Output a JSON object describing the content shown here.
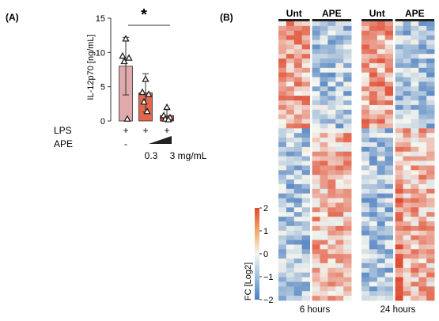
{
  "panels": {
    "a_label": "(A)",
    "b_label": "(B)"
  },
  "colors": {
    "bar_untreated": "#dfaaa9",
    "bar_low": "#e2674d",
    "bar_high": "#dd4a31",
    "heat_low": "#4a7dc0",
    "heat_mid": "#f4f6ef",
    "heat_high": "#e04a30",
    "axis": "#333333"
  },
  "chart_data": [
    {
      "type": "bar",
      "title": "",
      "xlabel": "",
      "ylabel": "IL-12p70 [ng/mL]",
      "ylim": [
        0,
        15
      ],
      "yticks": [
        0,
        5,
        10,
        15
      ],
      "categories": [
        "-",
        "0.3",
        "3 mg/mL"
      ],
      "values": [
        8.0,
        4.1,
        0.8
      ],
      "errors": [
        4.2,
        2.8,
        1.0
      ],
      "points": [
        [
          12.0,
          9.5,
          9.2,
          8.7,
          0.3
        ],
        [
          6.1,
          4.2,
          3.9,
          2.8,
          1.4
        ],
        [
          2.0,
          0.8,
          0.5,
          0.3,
          0.2
        ]
      ],
      "row_labels": [
        "LPS",
        "APE"
      ],
      "lps_marks": [
        "+",
        "+",
        "+"
      ],
      "significance": "*",
      "grid": false
    },
    {
      "type": "heatmap",
      "colorbar": {
        "label": "FC [Log2]",
        "ticks": [
          2,
          1,
          0,
          -1,
          -2
        ],
        "range": [
          -2,
          2
        ]
      },
      "panels": [
        {
          "title": "6 hours",
          "groups": [
            "Unt",
            "APE"
          ],
          "columns_per_group": [
            4,
            5
          ]
        },
        {
          "title": "24 hours",
          "groups": [
            "Unt",
            "APE"
          ],
          "columns_per_group": [
            4,
            5
          ]
        }
      ],
      "rows": 60
    }
  ]
}
